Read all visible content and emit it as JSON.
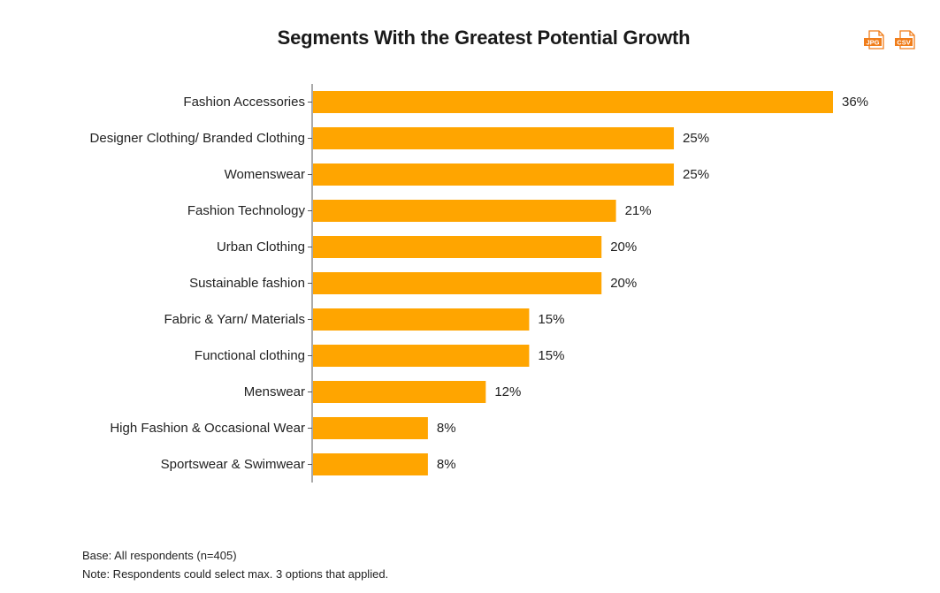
{
  "chart_data": {
    "type": "bar",
    "orientation": "horizontal",
    "title": "Segments With the Greatest Potential Growth",
    "categories": [
      "Fashion Accessories",
      "Designer Clothing/ Branded Clothing",
      "Womenswear",
      "Fashion Technology",
      "Urban Clothing",
      "Sustainable fashion",
      "Fabric & Yarn/ Materials",
      "Functional clothing",
      "Menswear",
      "High Fashion & Occasional Wear",
      "Sportswear & Swimwear"
    ],
    "values": [
      36,
      25,
      25,
      21,
      20,
      20,
      15,
      15,
      12,
      8,
      8
    ],
    "value_suffix": "%",
    "xlabel": "",
    "ylabel": "",
    "xlim": [
      0,
      36
    ],
    "grid": false,
    "bar_color": "#FFA500"
  },
  "export": {
    "jpg_label": "JPG",
    "csv_label": "CSV",
    "icon_color": "#F07D1A"
  },
  "notes": {
    "base": "Base: All respondents (n=405)",
    "note": "Note: Respondents could select max. 3 options that applied."
  }
}
